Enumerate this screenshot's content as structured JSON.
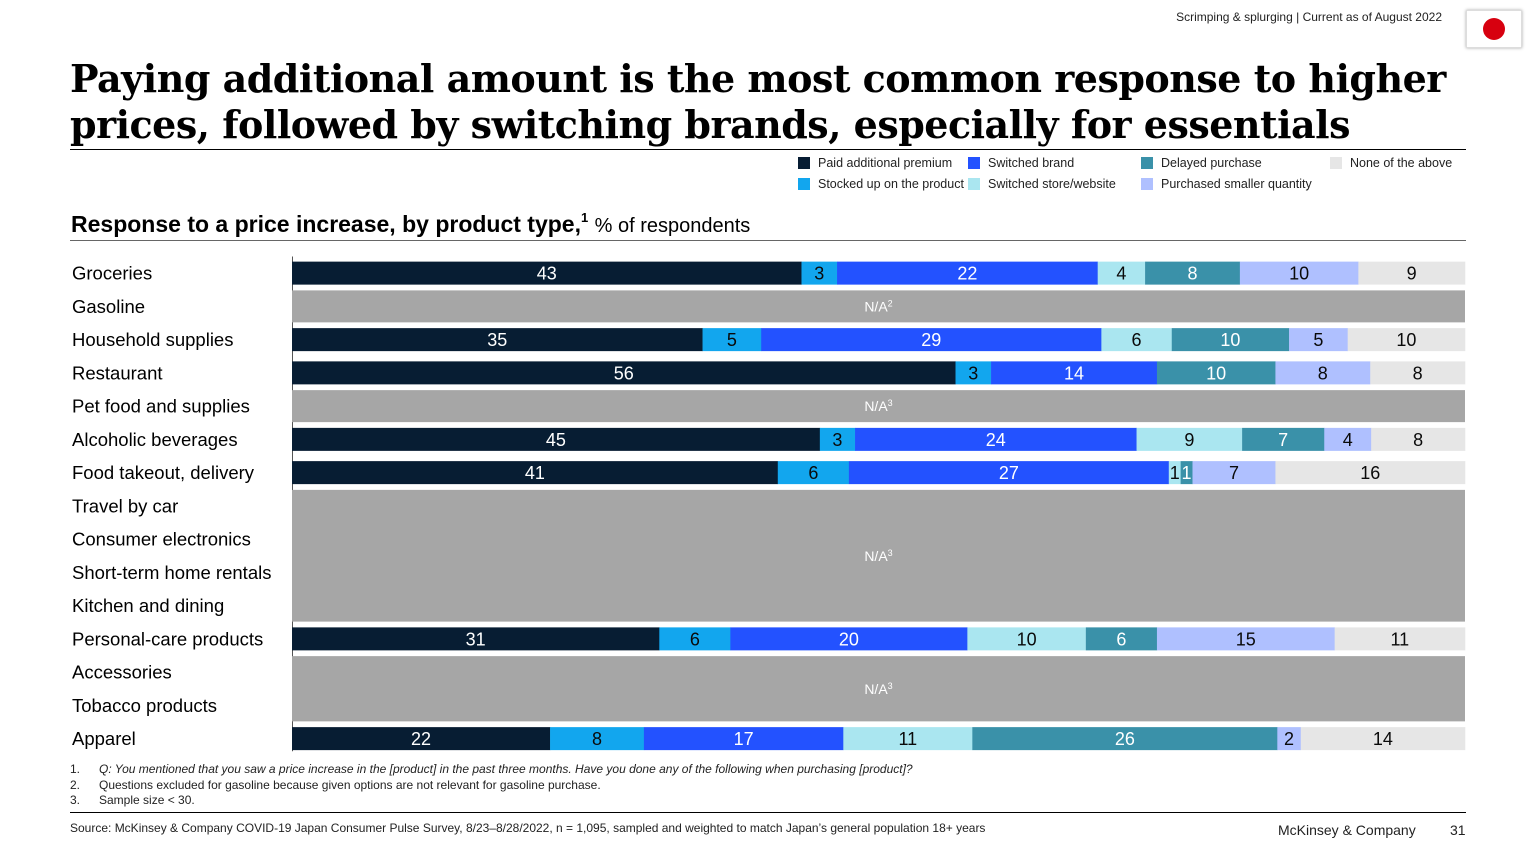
{
  "header": {
    "meta": "Scrimping & splurging | Current as of August 2022",
    "flag_color": "#d7000f"
  },
  "title": "Paying additional amount is the most common response to higher prices, followed by switching brands, especially for essentials",
  "legend": [
    {
      "label": "Paid additional premium",
      "color": "#071d33"
    },
    {
      "label": "Switched brand",
      "color": "#2352ff"
    },
    {
      "label": "Delayed purchase",
      "color": "#3a91a9"
    },
    {
      "label": "None of the above",
      "color": "#e6e6e6"
    },
    {
      "label": "Stocked up on the product",
      "color": "#12a6ee"
    },
    {
      "label": "Switched store/website",
      "color": "#aae6f0"
    },
    {
      "label": "Purchased smaller quantity",
      "color": "#afc0ff"
    }
  ],
  "chart_heading": {
    "main": "Response to a price increase, by product type,",
    "sup": "1",
    "unit": "% of respondents"
  },
  "chart_data": {
    "type": "bar",
    "orientation": "horizontal",
    "stacked": true,
    "categories": [
      "Groceries",
      "Gasoline",
      "Household supplies",
      "Restaurant",
      "Pet food and supplies",
      "Alcoholic beverages",
      "Food takeout, delivery",
      "Travel by car",
      "Consumer electronics",
      "Short-term home rentals",
      "Kitchen and dining",
      "Personal-care products",
      "Accessories",
      "Tobacco products",
      "Apparel"
    ],
    "series": [
      {
        "name": "Paid additional premium",
        "color": "#071d33",
        "label_color": "#ffffff",
        "values": [
          43,
          null,
          35,
          56,
          null,
          45,
          41,
          null,
          null,
          null,
          null,
          31,
          null,
          null,
          22
        ]
      },
      {
        "name": "Stocked up on the product",
        "color": "#12a6ee",
        "label_color": "#0a0a0a",
        "values": [
          3,
          null,
          5,
          3,
          null,
          3,
          6,
          null,
          null,
          null,
          null,
          6,
          null,
          null,
          8
        ]
      },
      {
        "name": "Switched brand",
        "color": "#2352ff",
        "label_color": "#ffffff",
        "values": [
          22,
          null,
          29,
          14,
          null,
          24,
          27,
          null,
          null,
          null,
          null,
          20,
          null,
          null,
          17
        ]
      },
      {
        "name": "Switched store/website",
        "color": "#aae6f0",
        "label_color": "#0a0a0a",
        "values": [
          4,
          null,
          6,
          0,
          null,
          9,
          1,
          null,
          null,
          null,
          null,
          10,
          null,
          null,
          11
        ]
      },
      {
        "name": "Delayed purchase",
        "color": "#3a91a9",
        "label_color": "#ffffff",
        "values": [
          8,
          null,
          10,
          10,
          null,
          7,
          1,
          null,
          null,
          null,
          null,
          6,
          null,
          null,
          26
        ]
      },
      {
        "name": "Purchased smaller quantity",
        "color": "#afc0ff",
        "label_color": "#0a0a0a",
        "values": [
          10,
          null,
          5,
          8,
          null,
          4,
          7,
          null,
          null,
          null,
          null,
          15,
          null,
          null,
          2
        ]
      },
      {
        "name": "None of the above",
        "color": "#e6e6e6",
        "label_color": "#0a0a0a",
        "values": [
          9,
          null,
          10,
          8,
          null,
          8,
          16,
          null,
          null,
          null,
          null,
          11,
          null,
          null,
          14
        ]
      }
    ],
    "na_groups": [
      {
        "rows": [
          1,
          1
        ],
        "label": "N/A",
        "sup": "2"
      },
      {
        "rows": [
          4,
          4
        ],
        "label": "N/A",
        "sup": "3"
      },
      {
        "rows": [
          7,
          10
        ],
        "label": "N/A",
        "sup": "3"
      },
      {
        "rows": [
          12,
          13
        ],
        "label": "N/A",
        "sup": "3"
      }
    ],
    "na_color": "#a6a6a6",
    "xlim": [
      0,
      100
    ]
  },
  "footnotes": [
    {
      "num": "1.",
      "text": "Q: You mentioned that you saw a price increase in the [product] in the past three months. Have you done any of the following when purchasing [product]?",
      "italic": true
    },
    {
      "num": "2.",
      "text": "Questions excluded for gasoline because given options are not relevant for gasoline purchase.",
      "italic": false
    },
    {
      "num": "3.",
      "text": "Sample size < 30.",
      "italic": false
    }
  ],
  "source": "Source: McKinsey & Company COVID-19 Japan Consumer Pulse Survey, 8/23–8/28/2022, n = 1,095, sampled and weighted to match Japan’s general population 18+ years",
  "company": "McKinsey & Company",
  "page_number": "31"
}
